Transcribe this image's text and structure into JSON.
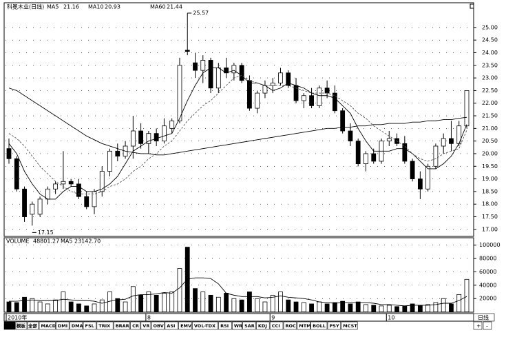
{
  "chart_data": [
    {
      "type": "candlestick",
      "title": "科冕木业(日线)",
      "categories": [
        "2010年",
        null,
        null,
        null,
        null,
        null,
        null,
        null,
        null,
        null,
        null,
        null,
        null,
        null,
        null,
        null,
        null,
        null,
        "8",
        null,
        null,
        null,
        null,
        null,
        null,
        null,
        null,
        null,
        null,
        null,
        null,
        null,
        null,
        null,
        "9",
        null,
        null,
        null,
        null,
        null,
        null,
        null,
        null,
        null,
        null,
        null,
        null,
        null,
        null,
        "10",
        null,
        null,
        null,
        null,
        null,
        null,
        null,
        null,
        null,
        null
      ],
      "open": [
        20.2,
        19.8,
        18.6,
        17.6,
        17.6,
        18.2,
        18.6,
        18.8,
        18.9,
        18.8,
        18.3,
        17.9,
        18.5,
        19.3,
        20.1,
        19.9,
        20.3,
        20.9,
        20.4,
        20.8,
        20.5,
        21.0,
        21.3,
        24.1,
        23.6,
        23.3,
        23.7,
        22.6,
        23.4,
        23.2,
        23.5,
        22.9,
        21.8,
        22.4,
        22.7,
        22.8,
        23.2,
        22.7,
        22.1,
        22.3,
        21.9,
        22.6,
        22.4,
        21.7,
        20.9,
        20.5,
        19.6,
        20.0,
        19.7,
        20.5,
        20.6,
        20.4,
        19.7,
        19.0,
        18.6,
        19.5,
        20.3,
        20.6,
        20.4,
        21.1
      ],
      "high": [
        20.6,
        19.9,
        18.7,
        18.1,
        18.3,
        18.7,
        18.9,
        20.1,
        19.0,
        19.0,
        18.5,
        18.6,
        19.5,
        20.2,
        20.4,
        20.5,
        21.5,
        21.2,
        20.9,
        21.0,
        21.4,
        21.4,
        23.8,
        25.57,
        24.0,
        23.9,
        23.8,
        23.6,
        23.8,
        23.6,
        23.6,
        23.1,
        22.5,
        22.9,
        23.0,
        23.4,
        23.3,
        23.0,
        22.4,
        22.6,
        22.7,
        22.9,
        22.7,
        21.8,
        21.2,
        20.6,
        20.1,
        20.2,
        20.6,
        20.9,
        20.8,
        20.7,
        19.8,
        19.3,
        19.6,
        20.4,
        20.8,
        21.3,
        21.3,
        22.5
      ],
      "low": [
        19.6,
        18.5,
        17.3,
        17.15,
        17.5,
        18.0,
        18.4,
        18.6,
        18.7,
        18.2,
        17.8,
        17.6,
        18.3,
        19.1,
        19.7,
        19.8,
        19.8,
        20.2,
        20.0,
        20.3,
        20.4,
        20.8,
        21.2,
        23.9,
        23.0,
        22.8,
        22.4,
        22.4,
        23.0,
        22.9,
        22.8,
        21.7,
        21.6,
        22.2,
        22.4,
        22.7,
        22.6,
        22.0,
        21.8,
        21.8,
        21.8,
        22.2,
        21.6,
        20.8,
        20.3,
        19.5,
        19.3,
        19.6,
        19.6,
        20.3,
        20.3,
        19.6,
        18.9,
        18.2,
        18.5,
        19.4,
        20.0,
        20.1,
        20.3,
        21.0
      ],
      "close": [
        19.8,
        18.6,
        17.5,
        18.0,
        18.2,
        18.6,
        18.8,
        18.9,
        18.8,
        18.3,
        17.9,
        18.5,
        19.3,
        20.1,
        19.9,
        20.3,
        20.9,
        20.4,
        20.8,
        20.5,
        21.1,
        21.3,
        23.5,
        24.05,
        23.3,
        23.7,
        22.6,
        23.4,
        23.2,
        23.5,
        22.9,
        21.8,
        22.4,
        22.7,
        22.8,
        23.2,
        22.7,
        22.1,
        22.3,
        21.9,
        22.6,
        22.4,
        21.7,
        20.9,
        20.5,
        19.6,
        20.0,
        19.7,
        20.5,
        20.6,
        20.4,
        19.7,
        19.0,
        18.6,
        19.5,
        20.3,
        20.6,
        20.4,
        21.1,
        22.5
      ],
      "up_color": "#ffffff",
      "down_color": "#000000",
      "series": [
        {
          "name": "MA5",
          "color": "#000000",
          "dash": false,
          "values": [
            20.4,
            20.0,
            19.3,
            18.8,
            18.4,
            18.2,
            18.2,
            18.5,
            18.7,
            18.7,
            18.5,
            18.5,
            18.6,
            18.8,
            19.1,
            19.6,
            20.1,
            20.3,
            20.5,
            20.6,
            20.7,
            20.8,
            21.4,
            22.1,
            22.7,
            23.2,
            23.4,
            23.4,
            23.2,
            23.3,
            23.1,
            22.8,
            22.8,
            22.7,
            22.5,
            22.6,
            22.8,
            22.7,
            22.6,
            22.4,
            22.3,
            22.3,
            22.2,
            21.9,
            21.6,
            21.0,
            20.5,
            20.1,
            20.1,
            20.1,
            20.2,
            20.2,
            20.0,
            19.7,
            19.4,
            19.4,
            19.6,
            19.9,
            20.4,
            21.16
          ]
        },
        {
          "name": "MA10",
          "color": "#555555",
          "dash": true,
          "values": [
            20.8,
            20.6,
            20.3,
            19.9,
            19.5,
            19.2,
            18.9,
            18.7,
            18.5,
            18.4,
            18.4,
            18.4,
            18.5,
            18.7,
            18.8,
            19.0,
            19.3,
            19.5,
            19.8,
            20.0,
            20.3,
            20.5,
            20.9,
            21.3,
            21.6,
            21.9,
            22.1,
            22.4,
            22.7,
            23.0,
            23.1,
            22.9,
            22.8,
            22.7,
            22.7,
            22.7,
            22.7,
            22.6,
            22.5,
            22.4,
            22.4,
            22.4,
            22.3,
            22.1,
            21.9,
            21.6,
            21.4,
            21.1,
            20.9,
            20.7,
            20.5,
            20.3,
            20.0,
            19.8,
            19.7,
            19.8,
            20.0,
            20.1,
            20.2,
            20.93
          ]
        },
        {
          "name": "MA60",
          "color": "#000000",
          "dash": false,
          "values": [
            22.6,
            22.5,
            22.3,
            22.1,
            21.9,
            21.7,
            21.5,
            21.3,
            21.1,
            20.9,
            20.7,
            20.55,
            20.4,
            20.3,
            20.2,
            20.1,
            20.05,
            20.0,
            20.0,
            19.95,
            19.95,
            20.0,
            20.05,
            20.1,
            20.15,
            20.2,
            20.25,
            20.3,
            20.35,
            20.4,
            20.45,
            20.5,
            20.55,
            20.6,
            20.65,
            20.7,
            20.75,
            20.8,
            20.85,
            20.9,
            20.95,
            21.0,
            21.0,
            21.05,
            21.05,
            21.1,
            21.1,
            21.15,
            21.15,
            21.2,
            21.2,
            21.2,
            21.25,
            21.25,
            21.3,
            21.3,
            21.35,
            21.35,
            21.4,
            21.44
          ]
        }
      ],
      "ylim": [
        16.75,
        25.87
      ],
      "yticks": [
        {
          "value": 17,
          "label": "17.00"
        },
        {
          "value": 17.5,
          "label": "17.50"
        },
        {
          "value": 18,
          "label": "18.00"
        },
        {
          "value": 18.5,
          "label": "18.50"
        },
        {
          "value": 19,
          "label": "19.00"
        },
        {
          "value": 19.5,
          "label": "19.50"
        },
        {
          "value": 20,
          "label": "20.00"
        },
        {
          "value": 20.5,
          "label": "20.50"
        },
        {
          "value": 21,
          "label": "21.00"
        },
        {
          "value": 21.5,
          "label": "21.50"
        },
        {
          "value": 22,
          "label": "22.00"
        },
        {
          "value": 22.5,
          "label": "22.50"
        },
        {
          "value": 23,
          "label": "23.00"
        },
        {
          "value": 23.5,
          "label": "23.50"
        },
        {
          "value": 24,
          "label": "24.00"
        },
        {
          "value": 24.5,
          "label": "24.50"
        },
        {
          "value": 25,
          "label": "25.00"
        }
      ],
      "grid": true
    },
    {
      "type": "bar",
      "title": "VOLUME",
      "values": [
        15000,
        14000,
        22000,
        20000,
        15000,
        12000,
        18000,
        30000,
        15000,
        12000,
        9000,
        12000,
        18000,
        30000,
        20000,
        15000,
        38000,
        25000,
        30000,
        25000,
        28000,
        30000,
        65000,
        97000,
        35000,
        30000,
        25000,
        22000,
        28000,
        20000,
        18000,
        30000,
        20000,
        15000,
        25000,
        30000,
        18000,
        15000,
        14000,
        12000,
        15000,
        12000,
        14000,
        16000,
        12000,
        15000,
        11000,
        10000,
        9000,
        10000,
        8000,
        9000,
        12000,
        10000,
        11000,
        14000,
        20000,
        12000,
        26000,
        48801.27
      ],
      "series": [
        {
          "name": "MA5",
          "color": "#000000",
          "last_value_label": "23142.70",
          "values": [
            16000,
            16000,
            17000,
            18000,
            17000,
            17000,
            17000,
            19000,
            18000,
            17000,
            17000,
            16000,
            13000,
            16000,
            18000,
            19000,
            24000,
            26000,
            26000,
            27000,
            29000,
            28000,
            36000,
            49000,
            51000,
            51000,
            50000,
            42000,
            28000,
            25000,
            23000,
            23000,
            23000,
            21000,
            22000,
            24000,
            22000,
            21000,
            20000,
            18000,
            15000,
            14000,
            13000,
            14000,
            14000,
            14000,
            14000,
            13000,
            11000,
            11000,
            10000,
            9000,
            10000,
            10000,
            10000,
            11000,
            13000,
            13000,
            17000,
            23142.7
          ]
        }
      ],
      "ylim": [
        0,
        110000
      ],
      "yticks": [
        20000,
        40000,
        60000,
        80000,
        100000
      ],
      "grid": true
    }
  ],
  "ui": {
    "left_tabs": [
      "指标",
      "模板",
      "全部"
    ],
    "tabs": [
      "MACD",
      "DMI",
      "DMA",
      "FSL",
      "TRIX",
      "BRAR",
      "CR",
      "VR",
      "OBV",
      "ASI",
      "EMV",
      "VOL-TDX",
      "RSI",
      "WR",
      "SAR",
      "KDJ",
      "CCI",
      "ROC",
      "MTM",
      "BOLL",
      "PSY",
      "MCST"
    ],
    "period": "日线",
    "buttons": [
      "+",
      "-"
    ]
  }
}
